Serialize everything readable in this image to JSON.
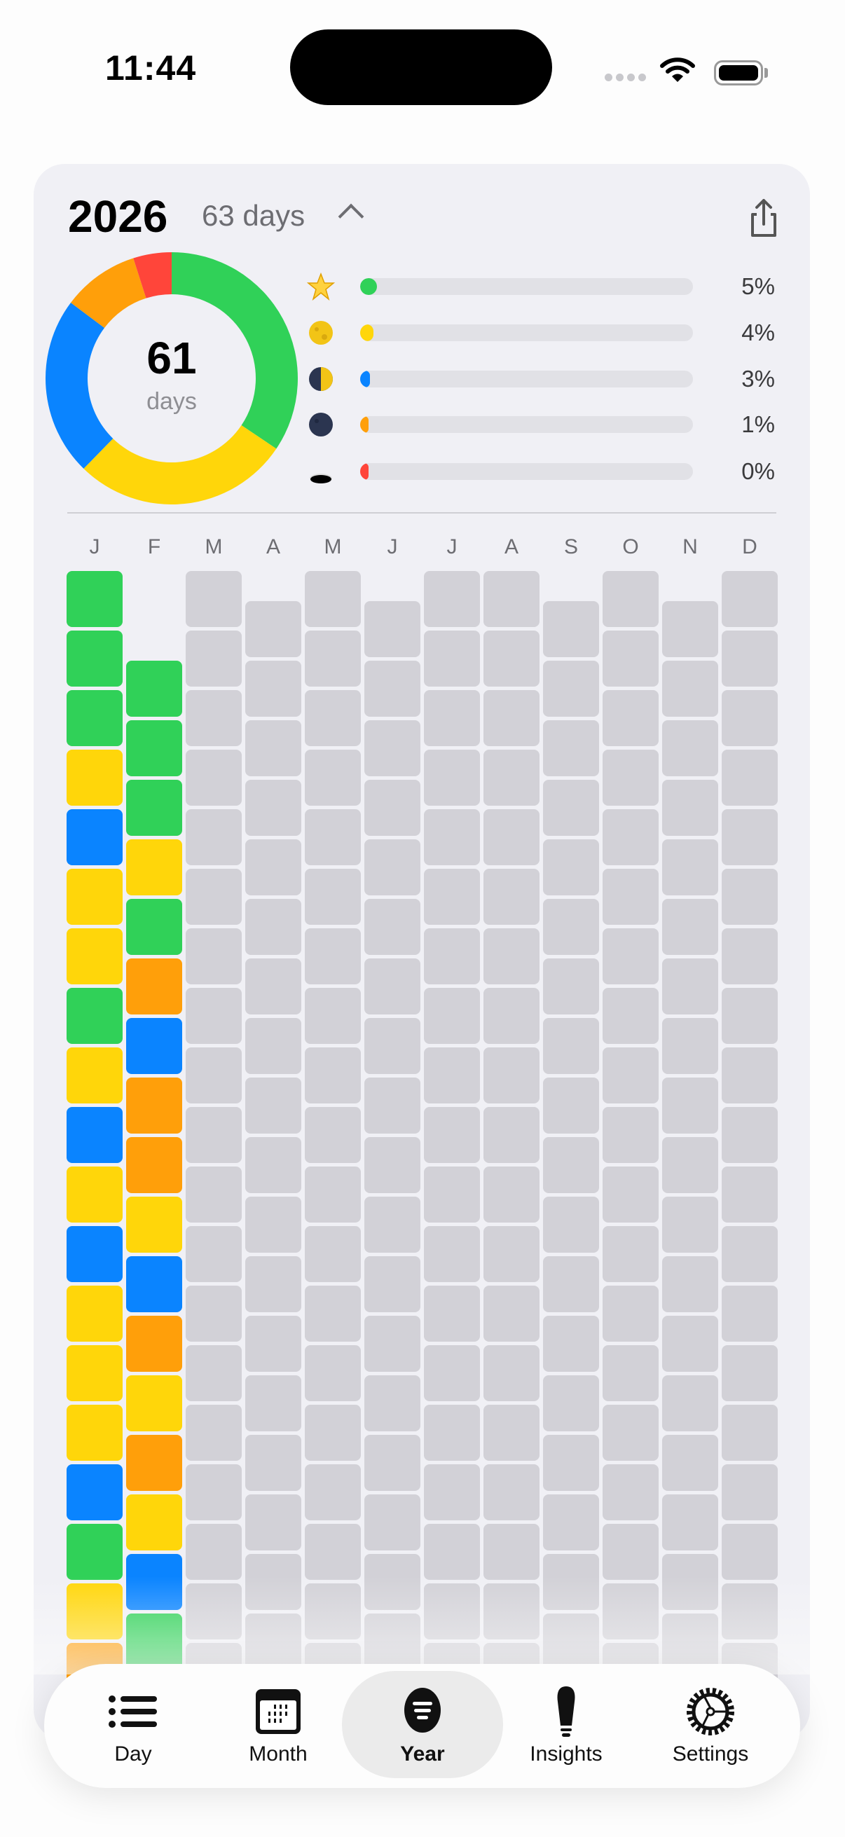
{
  "status_bar": {
    "time": "11:44",
    "wifi_icon": "wifi-icon",
    "battery_icon": "battery-icon",
    "battery_level": 1.0
  },
  "header": {
    "year": "2026",
    "day_count": "63 days",
    "collapse_icon": "chevron-up-icon",
    "share_icon": "share-icon"
  },
  "summary": {
    "total": "61",
    "total_label": "days",
    "donut": [
      {
        "mood": "great",
        "color": "#30d158",
        "count": 21
      },
      {
        "mood": "good",
        "color": "#ffd60a",
        "count": 17
      },
      {
        "mood": "okay",
        "color": "#0a84ff",
        "count": 14
      },
      {
        "mood": "bad",
        "color": "#ff9f0a",
        "count": 6
      },
      {
        "mood": "awful",
        "color": "#ff453a",
        "count": 3
      }
    ],
    "legend": [
      {
        "icon": "star-icon",
        "color": "#30d158",
        "percent": "5%",
        "fill": 5
      },
      {
        "icon": "full-moon-icon",
        "color": "#ffd60a",
        "percent": "4%",
        "fill": 4
      },
      {
        "icon": "half-moon-icon",
        "color": "#0a84ff",
        "percent": "3%",
        "fill": 3
      },
      {
        "icon": "new-moon-icon",
        "color": "#ff9f0a",
        "percent": "1%",
        "fill": 1
      },
      {
        "icon": "hole-icon",
        "color": "#ff453a",
        "percent": "0%",
        "fill": 0
      }
    ]
  },
  "grid": {
    "empty_color": "#d2d1d7",
    "months": [
      {
        "label": "J",
        "days": 31,
        "moods": [
          "G",
          "G",
          "G",
          "Y",
          "B",
          "Y",
          "Y",
          "G",
          "Y",
          "B",
          "Y",
          "B",
          "Y",
          "Y",
          "Y",
          "B",
          "G",
          "Y",
          "O"
        ]
      },
      {
        "label": "F",
        "days": 28,
        "moods": [
          "G",
          "G",
          "G",
          "Y",
          "G",
          "O",
          "B",
          "O",
          "O",
          "Y",
          "B",
          "O",
          "Y",
          "O",
          "Y",
          "B",
          "G"
        ]
      },
      {
        "label": "M",
        "days": 31,
        "moods": []
      },
      {
        "label": "A",
        "days": 30,
        "moods": []
      },
      {
        "label": "M",
        "days": 31,
        "moods": []
      },
      {
        "label": "J",
        "days": 30,
        "moods": []
      },
      {
        "label": "J",
        "days": 31,
        "moods": []
      },
      {
        "label": "A",
        "days": 31,
        "moods": []
      },
      {
        "label": "S",
        "days": 30,
        "moods": []
      },
      {
        "label": "O",
        "days": 31,
        "moods": []
      },
      {
        "label": "N",
        "days": 30,
        "moods": []
      },
      {
        "label": "D",
        "days": 31,
        "moods": []
      }
    ],
    "mood_colors": {
      "G": "#30d158",
      "Y": "#ffd60a",
      "B": "#0a84ff",
      "O": "#ff9f0a",
      "R": "#ff453a"
    }
  },
  "tabbar": {
    "active": "Year",
    "tabs": [
      {
        "label": "Day",
        "icon": "list-icon"
      },
      {
        "label": "Month",
        "icon": "calendar-icon"
      },
      {
        "label": "Year",
        "icon": "year-filter-icon"
      },
      {
        "label": "Insights",
        "icon": "lightbulb-icon"
      },
      {
        "label": "Settings",
        "icon": "gear-icon"
      }
    ]
  }
}
